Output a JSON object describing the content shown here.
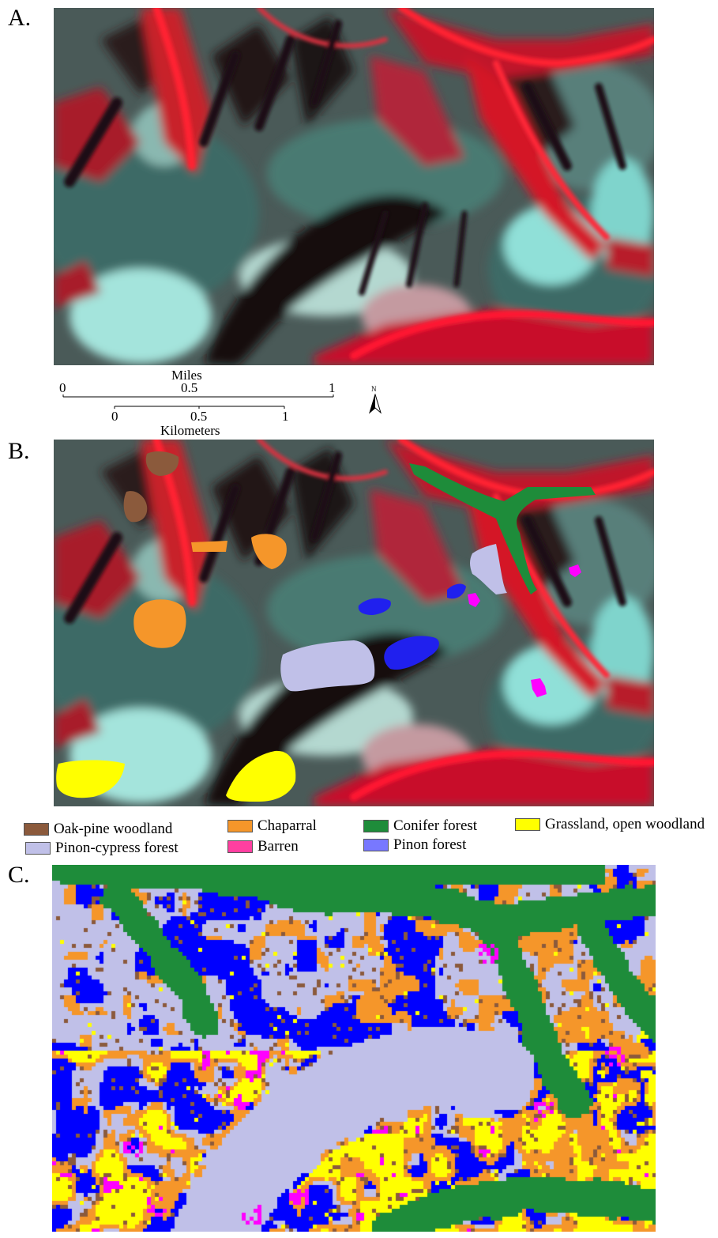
{
  "panels": {
    "a": {
      "letter": "A."
    },
    "b": {
      "letter": "B."
    },
    "c": {
      "letter": "C."
    }
  },
  "scale_bar": {
    "miles_label": "Miles",
    "miles_ticks": [
      "0",
      "0.5",
      "1"
    ],
    "km_label": "Kilometers",
    "km_ticks": [
      "0",
      "0.5",
      "1"
    ],
    "north_label": "N"
  },
  "legend": [
    {
      "label": "Oak-pine woodland",
      "color": "#8b5a3c"
    },
    {
      "label": "Chaparral",
      "color": "#f5962a"
    },
    {
      "label": "Conifer forest",
      "color": "#1e8c3a"
    },
    {
      "label": "Grassland, open woodland",
      "color": "#ffff00"
    },
    {
      "label": "Pinon-cypress forest",
      "color": "#c0c0e8"
    },
    {
      "label": "Barren",
      "color": "#ff3fa0"
    },
    {
      "label": "Pinon forest",
      "color": "#1f1fff"
    }
  ],
  "classification_colors": {
    "oak_pine": "#8b5a3c",
    "chaparral": "#f5962a",
    "conifer": "#1e8c3a",
    "grassland": "#ffff00",
    "pinon_cypress": "#c0c0e8",
    "barren": "#ff00ff",
    "pinon": "#0000ff"
  },
  "imagery_colors": {
    "red_vegetation": "#e01828",
    "dark_shadow": "#1c1416",
    "cyan_bright": "#a0e8e0",
    "teal_mid": "#3c6e6a",
    "pink_soil": "#d07888"
  }
}
